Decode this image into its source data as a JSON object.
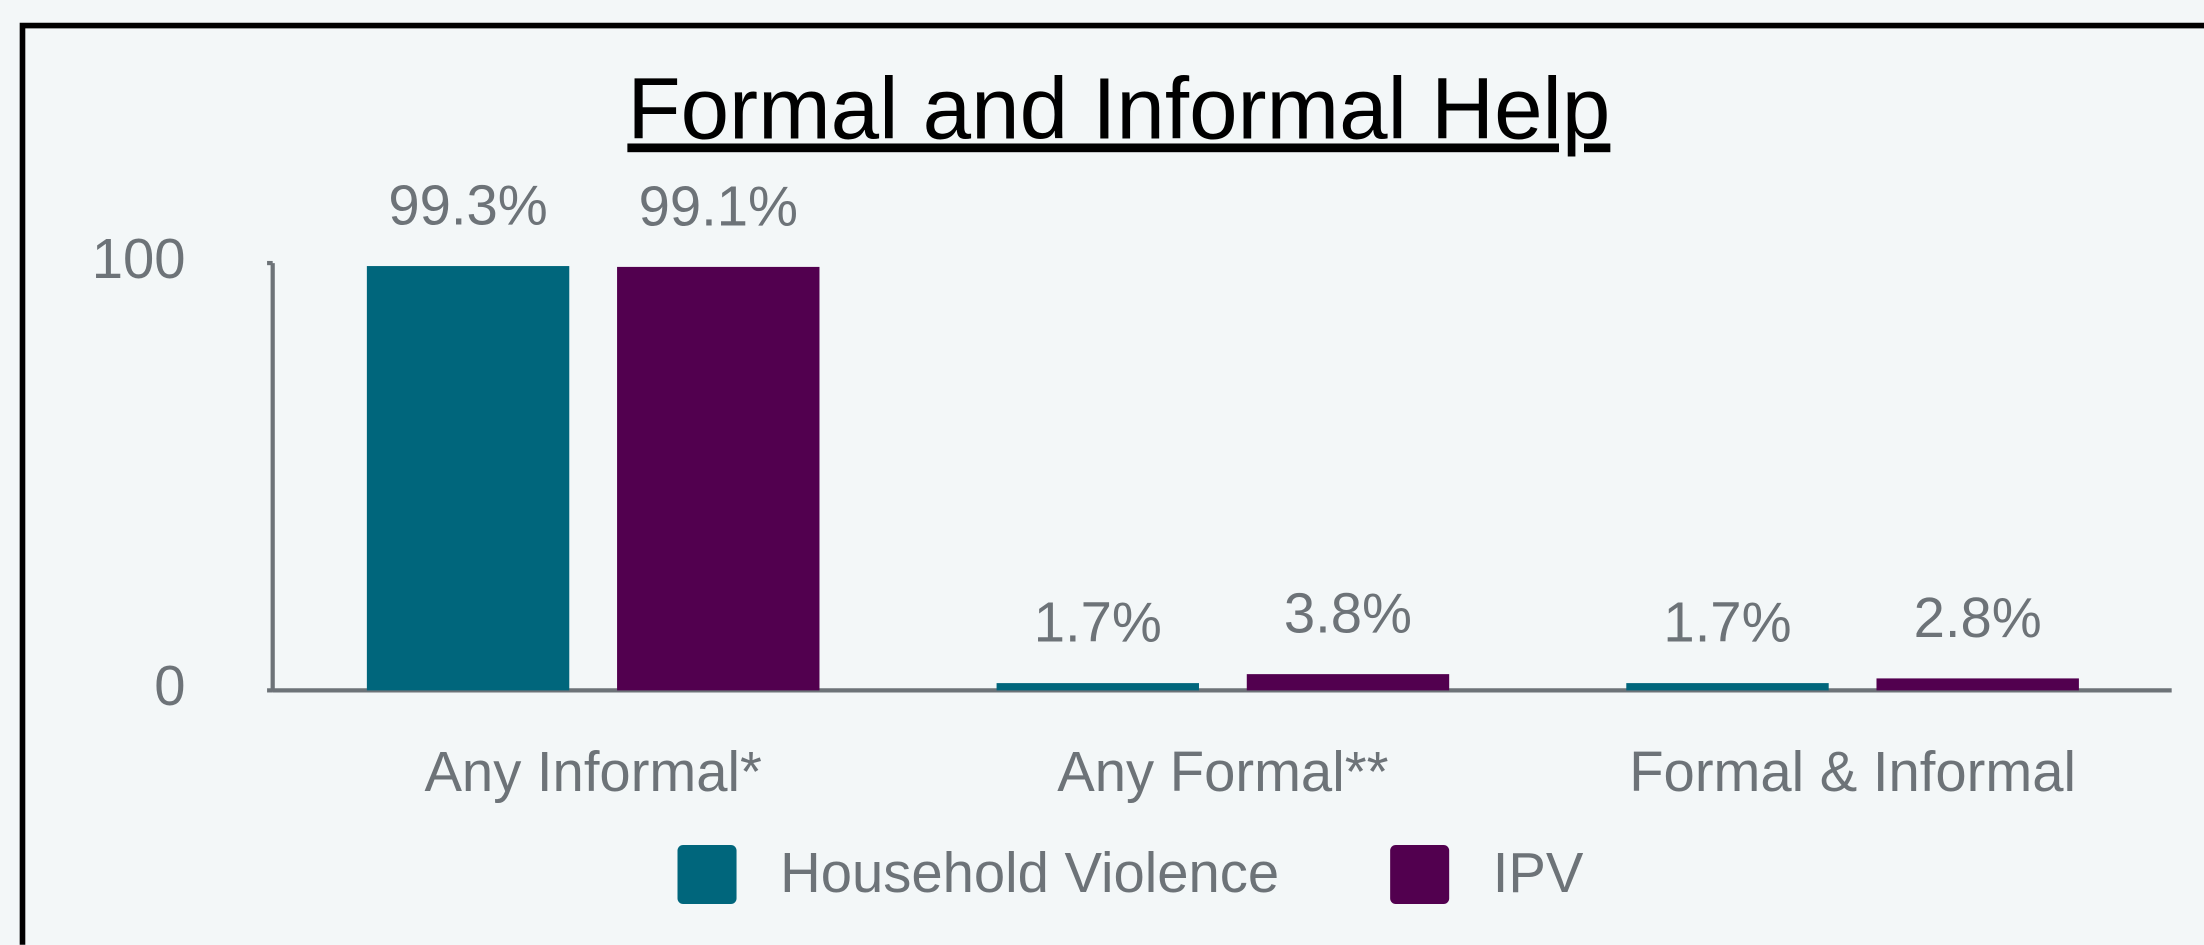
{
  "chart_data": {
    "type": "bar",
    "title": "Formal and Informal Help",
    "categories": [
      "Any Informal*",
      "Any Formal**",
      "Formal & Informal"
    ],
    "series": [
      {
        "name": "Household Violence",
        "color": "#00667c",
        "values": [
          99.3,
          1.7,
          1.7
        ],
        "value_labels": [
          "99.3%",
          "1.7%",
          "1.7%"
        ]
      },
      {
        "name": "IPV",
        "color": "#52004f",
        "values": [
          99.1,
          3.8,
          2.8
        ],
        "value_labels": [
          "99.1%",
          "3.8%",
          "2.8%"
        ]
      }
    ],
    "ylim": [
      0,
      100
    ],
    "yticks": [
      0,
      100
    ],
    "grid": false,
    "legend": "bottom"
  }
}
